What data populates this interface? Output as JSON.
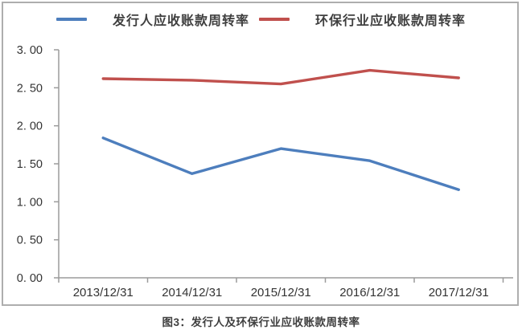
{
  "figure": {
    "caption": "图3：发行人及环保行业应收账款周转率"
  },
  "chart_data": {
    "type": "line",
    "title": "图3：发行人及环保行业应收账款周转率",
    "categories": [
      "2013/12/31",
      "2014/12/31",
      "2015/12/31",
      "2016/12/31",
      "2017/12/31"
    ],
    "series": [
      {
        "name": "发行人应收账款周转率",
        "color": "#4d7ebd",
        "values": [
          1.84,
          1.37,
          1.7,
          1.54,
          1.16
        ]
      },
      {
        "name": "环保行业应收账款周转率",
        "color": "#c0504d",
        "values": [
          2.62,
          2.6,
          2.55,
          2.73,
          2.63
        ]
      }
    ],
    "ylim": [
      0,
      3
    ],
    "ytick_step": 0.5,
    "ytick_labels": [
      "0. 00",
      "0. 50",
      "1. 00",
      "1. 50",
      "2. 00",
      "2. 50",
      "3. 00"
    ],
    "xlabel": "",
    "ylabel": "",
    "grid": false,
    "legend_position": "top",
    "axis_color": "#9b9b9b",
    "tick_label_color": "#333333"
  }
}
